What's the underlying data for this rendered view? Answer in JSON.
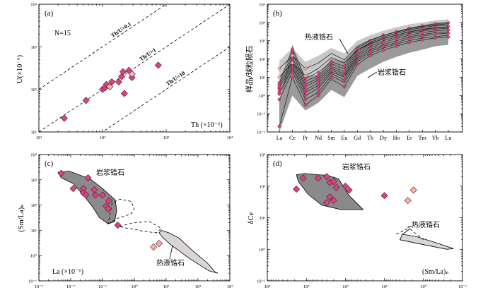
{
  "colors": {
    "magmatic_point": "#d6457f",
    "hydrothermal_point": "#f1b7a0",
    "point_edge": "#5a1230",
    "magmatic_field": "#8a8a8a",
    "hydrothermal_field": "#d9d5d5",
    "ree_band_outer": "#c8c8c8",
    "ree_band_inner": "#9a9a9a"
  },
  "chart_data": [
    {
      "id": "a",
      "type": "scatter",
      "panel_label": "(a)",
      "annotation": "N=15",
      "xlabel": "Th (×10⁻⁶)",
      "ylabel": "U(×10⁻⁶)",
      "xscale": "log",
      "yscale": "log",
      "xlim": [
        10,
        10000
      ],
      "ylim": [
        10,
        10000
      ],
      "x_ticks": [
        "10¹",
        "10²",
        "10³",
        "10⁴"
      ],
      "y_ticks": [
        "10¹",
        "10²",
        "10³",
        "10⁴"
      ],
      "reference_lines": [
        {
          "label": "Th/U=0.1",
          "ratio": 0.1
        },
        {
          "label": "Th/U=1",
          "ratio": 1
        },
        {
          "label": "Th/U=10",
          "ratio": 10
        }
      ],
      "series": [
        {
          "name": "magmatic zircon",
          "points": [
            [
              25,
              21
            ],
            [
              55,
              55
            ],
            [
              100,
              100
            ],
            [
              110,
              110
            ],
            [
              115,
              130
            ],
            [
              140,
              150
            ],
            [
              180,
              150
            ],
            [
              200,
              200
            ],
            [
              210,
              260
            ],
            [
              220,
              80
            ],
            [
              260,
              280
            ],
            [
              290,
              190
            ],
            [
              750,
              370
            ]
          ]
        },
        {
          "name": "hydrothermal zircon",
          "points": [
            [
              130,
              115
            ],
            [
              290,
              230
            ]
          ]
        }
      ]
    },
    {
      "id": "b",
      "type": "line",
      "panel_label": "(b)",
      "ylabel": "样品/球粒陨石",
      "yscale": "log",
      "ylim": [
        0.01,
        100000
      ],
      "y_ticks": [
        "10⁻²",
        "10⁻¹",
        "10⁰",
        "10¹",
        "10²",
        "10³",
        "10⁴",
        "10⁵"
      ],
      "categories": [
        "La",
        "Ce",
        "Pr",
        "Nd",
        "Sm",
        "Eu",
        "Gd",
        "Tb",
        "Dy",
        "Ho",
        "Er",
        "Tm",
        "Yb",
        "Lu"
      ],
      "annotations": [
        "热液锆石",
        "岩浆锆石"
      ],
      "magmatic_field": {
        "upper": [
          0.5,
          600,
          10,
          15,
          100,
          80,
          500,
          1100,
          2000,
          3300,
          5000,
          7000,
          10000,
          11000
        ],
        "lower": [
          0.01,
          1,
          0.15,
          0.4,
          2,
          0.8,
          12,
          30,
          70,
          130,
          220,
          320,
          500,
          600
        ]
      },
      "hydrothermal_field": {
        "upper": [
          80,
          400,
          70,
          150,
          400,
          200,
          1000,
          2000,
          3500,
          5500,
          8000,
          10000,
          13000,
          15000
        ],
        "lower": [
          4,
          40,
          8,
          20,
          60,
          40,
          200,
          400,
          700,
          1000,
          1400,
          1700,
          2000,
          2300
        ]
      },
      "series": [
        {
          "name": "magmatic 1",
          "kind": "magmatic",
          "values": [
            0.02,
            10,
            0.3,
            1.0,
            8,
            3,
            50,
            150,
            300,
            500,
            800,
            1100,
            1400,
            1600
          ]
        },
        {
          "name": "magmatic 2",
          "kind": "magmatic",
          "values": [
            0.6,
            20,
            0.6,
            1.5,
            12,
            5,
            70,
            200,
            400,
            650,
            1000,
            1400,
            1700,
            2000
          ]
        },
        {
          "name": "magmatic 3",
          "kind": "magmatic",
          "values": [
            1.2,
            30,
            1.0,
            2.5,
            16,
            7,
            90,
            260,
            500,
            800,
            1300,
            1800,
            2300,
            2600
          ]
        },
        {
          "name": "magmatic 4",
          "kind": "magmatic",
          "values": [
            1.5,
            40,
            1.5,
            3.5,
            20,
            10,
            110,
            320,
            620,
            1000,
            1600,
            2200,
            2800,
            3100
          ]
        },
        {
          "name": "magmatic 5",
          "kind": "magmatic",
          "values": [
            2.0,
            60,
            2.0,
            5,
            25,
            12,
            140,
            400,
            800,
            1300,
            2000,
            2800,
            3500,
            3900
          ]
        },
        {
          "name": "magmatic 6",
          "kind": "magmatic",
          "values": [
            2.5,
            80,
            3.0,
            7,
            32,
            15,
            180,
            500,
            1000,
            1600,
            2500,
            3400,
            4300,
            4800
          ]
        },
        {
          "name": "magmatic 7",
          "kind": "magmatic",
          "values": [
            3.0,
            120,
            4.0,
            9,
            40,
            20,
            230,
            650,
            1300,
            2000,
            3100,
            4200,
            5300,
            5900
          ]
        },
        {
          "name": "magmatic 8",
          "kind": "magmatic",
          "values": [
            4.0,
            200,
            6.0,
            12,
            55,
            28,
            300,
            800,
            1600,
            2500,
            3900,
            5200,
            6600,
            7300
          ]
        },
        {
          "name": "magmatic 9",
          "kind": "magmatic",
          "values": [
            5.0,
            350,
            9.0,
            18,
            70,
            40,
            380,
            1000,
            2000,
            3100,
            4800,
            6500,
            8500,
            9500
          ]
        },
        {
          "name": "hydrothermal 1",
          "kind": "hydrothermal",
          "values": [
            30,
            150,
            30,
            60,
            200,
            90,
            500,
            1100,
            2000,
            3000,
            4500,
            6000,
            7500,
            8500
          ]
        },
        {
          "name": "hydrothermal 2",
          "kind": "hydrothermal",
          "values": [
            10,
            60,
            12,
            30,
            120,
            60,
            300,
            700,
            1300,
            2000,
            3000,
            4000,
            5000,
            5800
          ]
        }
      ]
    },
    {
      "id": "c",
      "type": "scatter",
      "panel_label": "(c)",
      "xlabel": "La (×10⁻⁶)",
      "ylabel": "(Sm/La)ₙ",
      "xscale": "log",
      "yscale": "log",
      "xlim": [
        0.001,
        1000
      ],
      "ylim": [
        0.1,
        10000
      ],
      "x_ticks": [
        "10⁻³",
        "10⁻²",
        "10⁻¹",
        "10⁰",
        "10¹",
        "10²",
        "10³"
      ],
      "y_ticks": [
        "10⁻¹",
        "10⁰",
        "10¹",
        "10²",
        "10³",
        "10⁴"
      ],
      "annotations": [
        "岩浆锆石",
        "热液锆石"
      ],
      "magmatic_field": [
        [
          0.004,
          2000
        ],
        [
          0.009,
          2200
        ],
        [
          0.04,
          1100
        ],
        [
          0.1,
          450
        ],
        [
          0.25,
          160
        ],
        [
          0.28,
          60
        ],
        [
          0.24,
          22
        ],
        [
          0.15,
          18
        ],
        [
          0.08,
          32
        ],
        [
          0.05,
          80
        ],
        [
          0.025,
          250
        ],
        [
          0.012,
          700
        ],
        [
          0.005,
          1200
        ]
      ],
      "magmatic_field_dashed": [
        [
          0.15,
          18
        ],
        [
          0.3,
          30
        ],
        [
          0.8,
          45
        ],
        [
          1.0,
          70
        ],
        [
          0.8,
          140
        ],
        [
          0.35,
          170
        ],
        [
          0.2,
          120
        ]
      ],
      "hydrothermal_field": [
        [
          7,
          10
        ],
        [
          12,
          8
        ],
        [
          25,
          5
        ],
        [
          60,
          1.8
        ],
        [
          200,
          0.5
        ],
        [
          350,
          0.22
        ],
        [
          420,
          0.2
        ],
        [
          220,
          0.25
        ],
        [
          60,
          0.7
        ],
        [
          15,
          2.5
        ],
        [
          8,
          5
        ],
        [
          6,
          8
        ]
      ],
      "hydrothermal_field_dashed": [
        [
          0.35,
          14
        ],
        [
          0.9,
          20
        ],
        [
          3,
          22
        ],
        [
          7,
          12
        ],
        [
          5,
          8
        ],
        [
          2,
          9
        ],
        [
          1,
          11
        ],
        [
          0.6,
          12
        ]
      ],
      "series": [
        {
          "name": "magmatic zircon",
          "points": [
            [
              0.005,
              1800
            ],
            [
              0.012,
              450
            ],
            [
              0.025,
              450
            ],
            [
              0.025,
              300
            ],
            [
              0.03,
              250
            ],
            [
              0.035,
              1200
            ],
            [
              0.055,
              400
            ],
            [
              0.06,
              250
            ],
            [
              0.1,
              250
            ],
            [
              0.13,
              90
            ],
            [
              0.15,
              70
            ],
            [
              0.16,
              150
            ],
            [
              0.3,
              16
            ]
          ]
        },
        {
          "name": "hydrothermal zircon",
          "points": [
            [
              4,
              2.2
            ],
            [
              6,
              3
            ]
          ]
        }
      ]
    },
    {
      "id": "d",
      "type": "scatter",
      "panel_label": "(d)",
      "xlabel": "(Sm/La)ₙ",
      "ylabel": "δCe",
      "xscale": "log",
      "yscale": "log",
      "xlim": [
        10000,
        0.1
      ],
      "ylim": [
        0.1,
        1000
      ],
      "x_ticks": [
        "10⁴",
        "10³",
        "10²",
        "10¹",
        "10⁰",
        "10⁻¹"
      ],
      "y_ticks": [
        "10⁻¹",
        "10⁰",
        "10¹",
        "10²",
        "10³"
      ],
      "annotations": [
        "岩浆锆石",
        "热液锆石"
      ],
      "magmatic_field": [
        [
          1800,
          230
        ],
        [
          1100,
          250
        ],
        [
          500,
          230
        ],
        [
          300,
          220
        ],
        [
          150,
          170
        ],
        [
          80,
          50
        ],
        [
          35,
          18
        ],
        [
          130,
          18
        ],
        [
          400,
          25
        ],
        [
          900,
          55
        ],
        [
          1600,
          140
        ]
      ],
      "hydrothermal_field": [
        [
          4,
          2
        ],
        [
          1,
          1.4
        ],
        [
          0.25,
          1.0
        ],
        [
          0.17,
          1.05
        ],
        [
          0.4,
          1.5
        ],
        [
          1.5,
          2.5
        ],
        [
          3.5,
          3
        ]
      ],
      "hydrothermal_field_dashed": [
        [
          5,
          3
        ],
        [
          3,
          4
        ],
        [
          2,
          5.5
        ],
        [
          2.5,
          5
        ],
        [
          1.5,
          3
        ],
        [
          1,
          2
        ]
      ],
      "series": [
        {
          "name": "magmatic zircon",
          "points": [
            [
              1800,
              80
            ],
            [
              1200,
              180
            ],
            [
              500,
              180
            ],
            [
              300,
              200
            ],
            [
              250,
              130
            ],
            [
              200,
              140
            ],
            [
              170,
              90
            ],
            [
              100,
              100
            ],
            [
              80,
              75
            ],
            [
              300,
              30
            ],
            [
              200,
              35
            ],
            [
              250,
              45
            ],
            [
              10,
              50
            ]
          ]
        },
        {
          "name": "hydrothermal zircon",
          "points": [
            [
              2.5,
              35
            ],
            [
              1.8,
              75
            ]
          ]
        }
      ]
    }
  ]
}
